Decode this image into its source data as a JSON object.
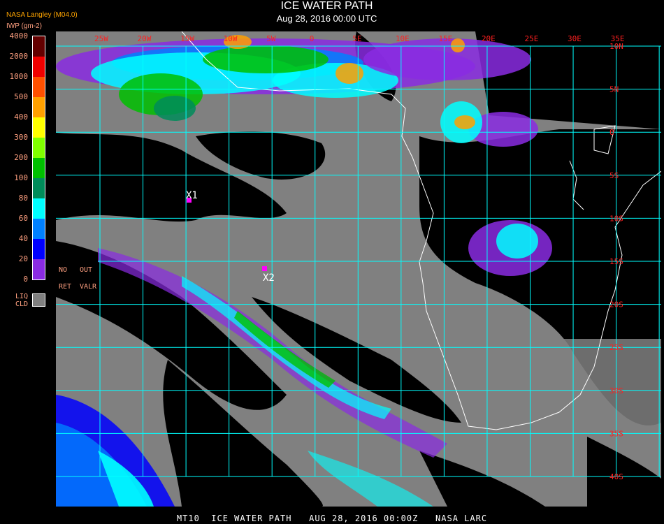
{
  "header": {
    "title": "ICE WATER PATH",
    "subtitle": "Aug 28, 2016 00:00 UTC",
    "organization": "NASA Langley (M04.0)",
    "units": "IWP (gm-2)"
  },
  "legend": {
    "labels": [
      "4000",
      "2000",
      "1000",
      "500",
      "400",
      "300",
      "200",
      "100",
      "80",
      "60",
      "40",
      "20",
      "0"
    ],
    "colors": [
      "#640000",
      "#f00000",
      "#ff5000",
      "#ffa000",
      "#ffff00",
      "#80ff00",
      "#00c000",
      "#008c5a",
      "#00ffff",
      "#0080ff",
      "#0000ff",
      "#8a2be2"
    ],
    "liquid_cloud": {
      "line1": "LIQ",
      "line2": "CLD",
      "color": "#808080"
    },
    "no_retrieval": {
      "line1": "NO",
      "line2": "RET"
    },
    "out_of_range": {
      "line1": "OUT",
      "line2": "VALR"
    }
  },
  "map": {
    "longitude_labels": [
      "25W",
      "20W",
      "15W",
      "10W",
      "5W",
      "0",
      "5E",
      "10E",
      "15E",
      "20E",
      "25E",
      "30E",
      "35E"
    ],
    "latitude_labels": [
      "10N",
      "5N",
      "0",
      "5S",
      "10S",
      "15S",
      "20S",
      "25S",
      "30S",
      "35S",
      "40S"
    ],
    "grid_color": "#00ffff",
    "label_color": "#ff2020",
    "clear_color": "#000000",
    "coastline_color": "#ffffff",
    "markers": [
      {
        "label": "X1",
        "color": "#ff00ff"
      },
      {
        "label": "X2",
        "color": "#ff00ff"
      }
    ]
  },
  "footer": {
    "text": "MT10  ICE WATER PATH   AUG 28, 2016 00:00Z   NASA LARC"
  }
}
